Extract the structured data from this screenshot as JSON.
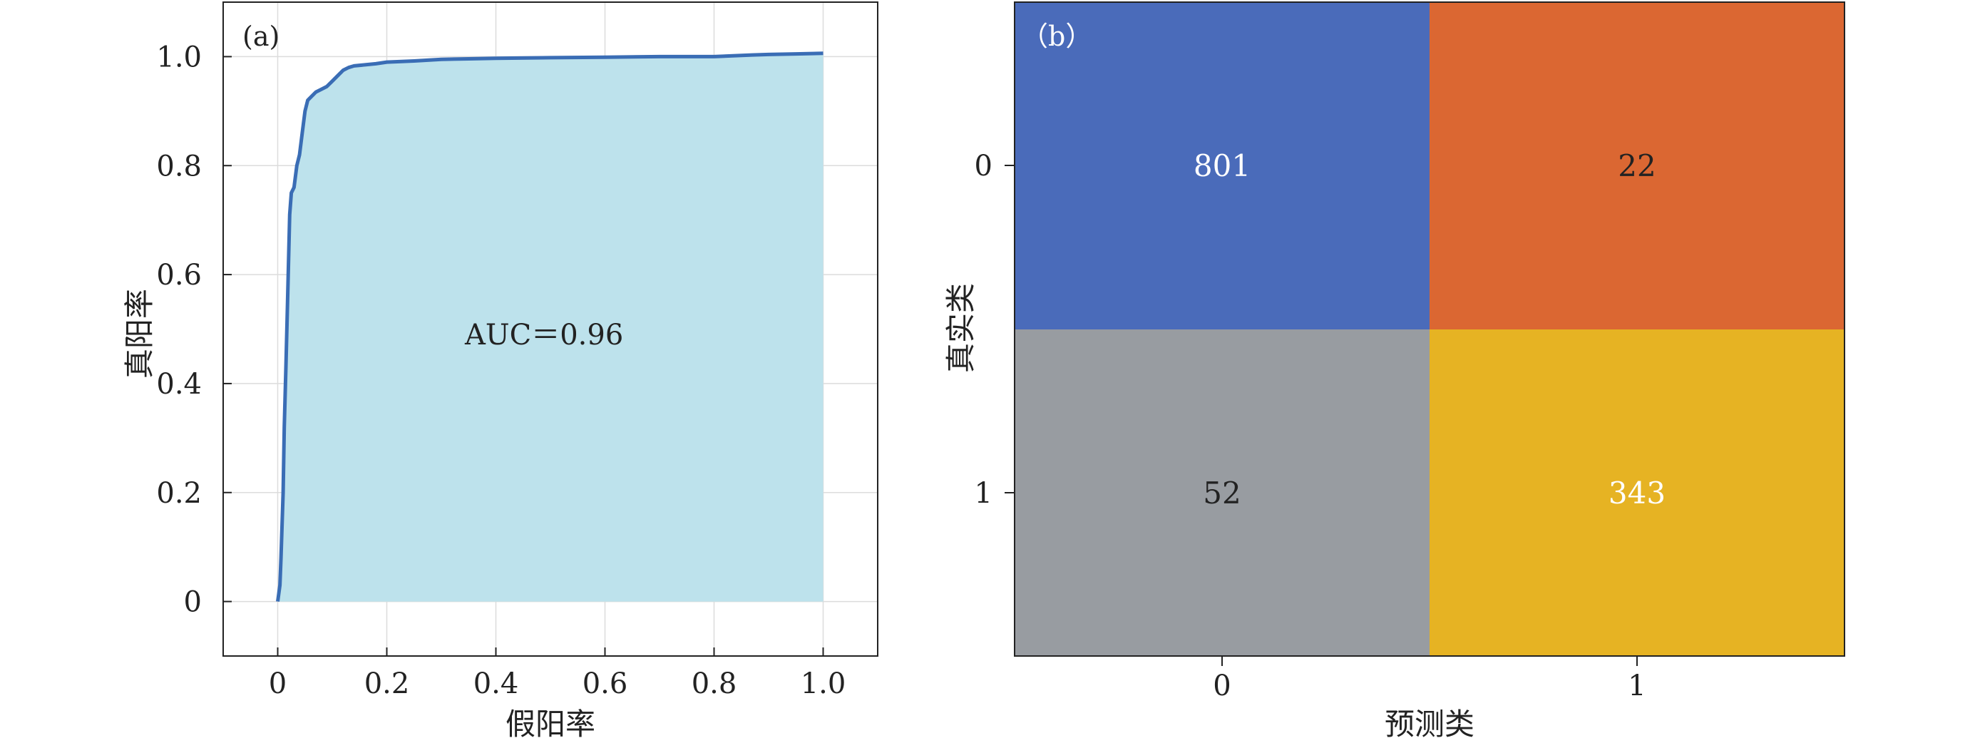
{
  "chart_data": [
    {
      "type": "area",
      "panel_label": "(a)",
      "annotation": "AUC＝0.96",
      "xlabel": "假阳率",
      "ylabel": "真阳率",
      "xlim": [
        -0.1,
        1.1
      ],
      "ylim": [
        -0.1,
        1.1
      ],
      "x_ticks": [
        "0",
        "0.2",
        "0.4",
        "0.6",
        "0.8",
        "1.0"
      ],
      "y_ticks": [
        "0",
        "0.2",
        "0.4",
        "0.6",
        "0.8",
        "1.0"
      ],
      "grid": true,
      "series": [
        {
          "x": [
            0.0,
            0.004,
            0.006,
            0.008,
            0.01,
            0.012,
            0.015,
            0.018,
            0.02,
            0.022,
            0.025,
            0.03,
            0.035,
            0.04,
            0.045,
            0.05,
            0.055,
            0.06,
            0.07,
            0.08,
            0.09,
            0.1,
            0.11,
            0.12,
            0.13,
            0.14,
            0.16,
            0.18,
            0.2,
            0.25,
            0.3,
            0.35,
            0.4,
            0.5,
            0.6,
            0.7,
            0.8,
            0.87,
            0.9,
            0.95,
            1.0
          ],
          "y": [
            0.0,
            0.03,
            0.08,
            0.14,
            0.2,
            0.32,
            0.43,
            0.55,
            0.63,
            0.71,
            0.75,
            0.76,
            0.8,
            0.82,
            0.86,
            0.9,
            0.92,
            0.925,
            0.935,
            0.94,
            0.945,
            0.955,
            0.965,
            0.975,
            0.98,
            0.983,
            0.985,
            0.987,
            0.99,
            0.992,
            0.995,
            0.996,
            0.997,
            0.998,
            0.999,
            1.0,
            1.0,
            1.003,
            1.004,
            1.005,
            1.006
          ],
          "color": "#3a6db5",
          "fill": "#bde2ec"
        }
      ]
    },
    {
      "type": "heatmap",
      "panel_label": "（b）",
      "xlabel": "预测类",
      "ylabel": "真实类",
      "x_ticks": [
        "0",
        "1"
      ],
      "y_ticks": [
        "0",
        "1"
      ],
      "matrix": [
        [
          801,
          22
        ],
        [
          52,
          343
        ]
      ],
      "cell_colors": [
        [
          "#4a6bba",
          "#db6732"
        ],
        [
          "#989ca1",
          "#e6b323"
        ]
      ],
      "text_colors": [
        [
          "#ffffff",
          "#222222"
        ],
        [
          "#222222",
          "#ffffff"
        ]
      ]
    }
  ]
}
